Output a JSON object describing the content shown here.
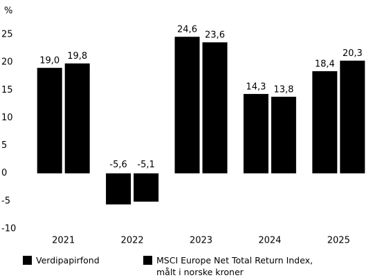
{
  "chart_data": {
    "type": "bar",
    "y_label": "%",
    "categories": [
      "2021",
      "2022",
      "2023",
      "2024",
      "2025"
    ],
    "series": [
      {
        "name": "Verdipapirfond",
        "color": "#000000",
        "values": [
          19.0,
          -5.6,
          24.6,
          14.3,
          18.4
        ],
        "value_labels": [
          "19,0",
          "-5,6",
          "24,6",
          "14,3",
          "18,4"
        ]
      },
      {
        "name": "MSCI Europe Net Total Return Index, målt i norske kroner",
        "color": "#000000",
        "values": [
          19.8,
          -5.1,
          23.6,
          13.8,
          20.3
        ],
        "value_labels": [
          "19,8",
          "-5,1",
          "23,6",
          "13,8",
          "20,3"
        ]
      }
    ],
    "ylim": [
      -10,
      25
    ],
    "yticks": [
      -10,
      -5,
      0,
      5,
      10,
      15,
      20,
      25
    ],
    "grid": false,
    "legend": "bottom"
  }
}
